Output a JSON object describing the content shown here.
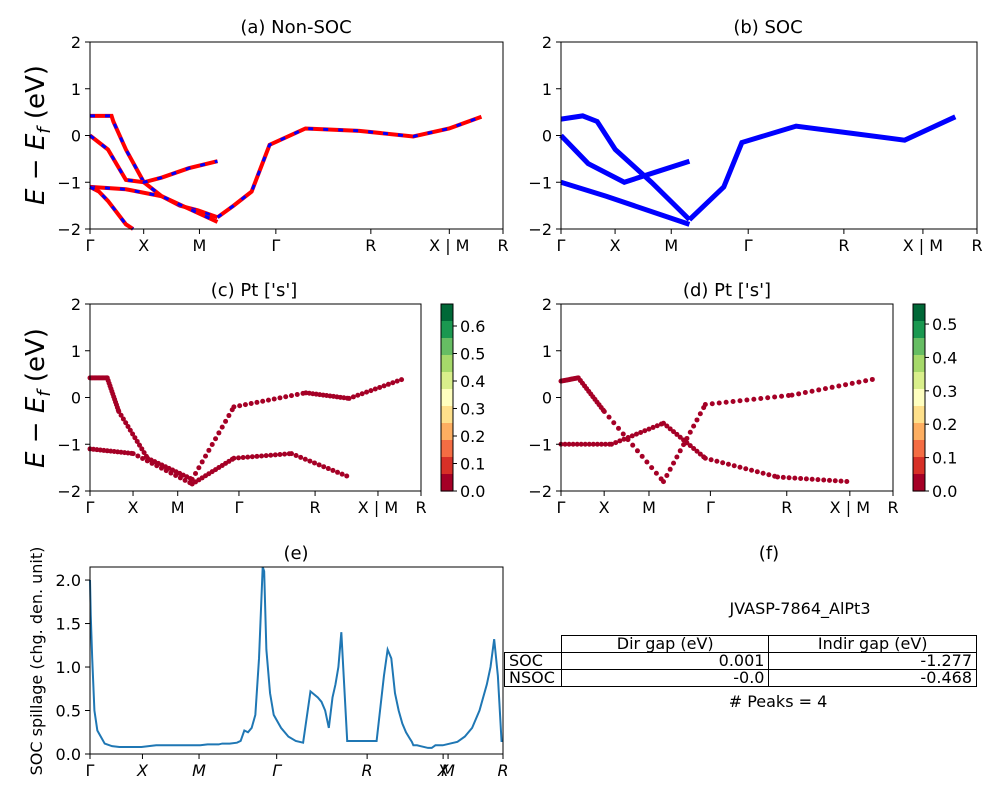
{
  "chart_data": [
    {
      "id": "a",
      "type": "line",
      "title": "(a) Non-SOC",
      "ylabel": "E − E_f (eV)",
      "ylim": [
        -2,
        2
      ],
      "yticks": [
        "2",
        "1",
        "0",
        "−1",
        "−2"
      ],
      "kticks": [
        "Γ",
        "X",
        "M",
        "Γ",
        "R",
        "X | M",
        "R"
      ],
      "colors": {
        "nsoc": "#ff0000",
        "soc": "#0000ff"
      },
      "style": "red line with blue dashes",
      "series": [
        {
          "values": [
            [
              0,
              0.42
            ],
            [
              0.12,
              0.42
            ],
            [
              0.13,
              0.3
            ],
            [
              0.2,
              -0.3
            ],
            [
              0.3,
              -1
            ],
            [
              0.4,
              -1.3
            ],
            [
              0.5,
              -1.5
            ],
            [
              0.6,
              -1.6
            ],
            [
              0.71,
              -1.75
            ]
          ]
        },
        {
          "values": [
            [
              0.71,
              -1.75
            ],
            [
              0.8,
              -1.5
            ],
            [
              0.9,
              -1.2
            ],
            [
              1,
              -0.2
            ],
            [
              1.2,
              0.15
            ],
            [
              1.5,
              0.1
            ],
            [
              1.8,
              -0.02
            ],
            [
              2,
              0.15
            ],
            [
              2.18,
              0.4
            ]
          ]
        },
        {
          "values": [
            [
              0,
              0
            ],
            [
              0.1,
              -0.3
            ],
            [
              0.2,
              -0.95
            ],
            [
              0.3,
              -1
            ],
            [
              0.4,
              -0.9
            ],
            [
              0.55,
              -0.7
            ],
            [
              0.71,
              -0.55
            ]
          ]
        },
        {
          "values": [
            [
              0,
              -1.1
            ],
            [
              0.2,
              -1.15
            ],
            [
              0.4,
              -1.3
            ],
            [
              0.71,
              -1.85
            ]
          ]
        },
        {
          "values": [
            [
              0,
              -1.1
            ],
            [
              0.05,
              -1.2
            ],
            [
              0.1,
              -1.4
            ],
            [
              0.2,
              -1.9
            ],
            [
              0.24,
              -2
            ]
          ]
        }
      ]
    },
    {
      "id": "b",
      "type": "line",
      "title": "(b) SOC",
      "ylim": [
        -2,
        2
      ],
      "yticks": [
        "2",
        "1",
        "0",
        "−1",
        "−2"
      ],
      "kticks": [
        "Γ",
        "X",
        "M",
        "Γ",
        "R",
        "X | M",
        "R"
      ],
      "colors": {
        "soc": "#0000ff"
      },
      "series": [
        {
          "values": [
            [
              0,
              0.35
            ],
            [
              0.12,
              0.42
            ],
            [
              0.2,
              0.3
            ],
            [
              0.3,
              -0.3
            ],
            [
              0.5,
              -1
            ],
            [
              0.71,
              -1.8
            ]
          ]
        },
        {
          "values": [
            [
              0.71,
              -1.8
            ],
            [
              0.9,
              -1.1
            ],
            [
              1,
              -0.15
            ],
            [
              1.3,
              0.2
            ],
            [
              1.6,
              0.05
            ],
            [
              1.9,
              -0.1
            ],
            [
              2.18,
              0.4
            ]
          ]
        },
        {
          "values": [
            [
              0,
              0
            ],
            [
              0.15,
              -0.6
            ],
            [
              0.35,
              -1
            ],
            [
              0.55,
              -0.75
            ],
            [
              0.71,
              -0.55
            ]
          ]
        },
        {
          "values": [
            [
              0,
              -1
            ],
            [
              0.25,
              -1.3
            ],
            [
              0.71,
              -1.9
            ]
          ]
        }
      ]
    },
    {
      "id": "c",
      "type": "scatter",
      "title": "(c)  Pt ['s']",
      "ylabel": "E − E_f (eV)",
      "ylim": [
        -2,
        2
      ],
      "yticks": [
        "2",
        "1",
        "0",
        "−1",
        "−2"
      ],
      "kticks": [
        "Γ",
        "X",
        "M",
        "Γ",
        "R",
        "X | M",
        "R"
      ],
      "colorbar": {
        "ticks": [
          "0.0",
          "0.1",
          "0.2",
          "0.3",
          "0.4",
          "0.5",
          "0.6"
        ],
        "max": 0.68
      },
      "series": [
        {
          "values": [
            [
              0,
              0.42
            ],
            [
              0.12,
              0.42
            ],
            [
              0.2,
              -0.3
            ],
            [
              0.4,
              -1.3
            ],
            [
              0.71,
              -1.75
            ],
            [
              1,
              -0.2
            ],
            [
              1.5,
              0.1
            ],
            [
              1.8,
              -0.02
            ],
            [
              2.18,
              0.4
            ]
          ]
        },
        {
          "values": [
            [
              0,
              -1.1
            ],
            [
              0.3,
              -1.2
            ],
            [
              0.71,
              -1.85
            ],
            [
              1,
              -1.3
            ],
            [
              1.4,
              -1.2
            ],
            [
              1.8,
              -1.7
            ]
          ]
        }
      ]
    },
    {
      "id": "d",
      "type": "scatter",
      "title": "(d) Pt ['s']",
      "ylim": [
        -2,
        2
      ],
      "yticks": [
        "2",
        "1",
        "0",
        "−1",
        "−2"
      ],
      "kticks": [
        "Γ",
        "X",
        "M",
        "Γ",
        "R",
        "X | M",
        "R"
      ],
      "colorbar": {
        "ticks": [
          "0.0",
          "0.1",
          "0.2",
          "0.3",
          "0.4",
          "0.5"
        ],
        "max": 0.56
      },
      "series": [
        {
          "values": [
            [
              0,
              0.35
            ],
            [
              0.12,
              0.42
            ],
            [
              0.3,
              -0.3
            ],
            [
              0.71,
              -1.8
            ],
            [
              1,
              -0.15
            ],
            [
              1.6,
              0.05
            ],
            [
              2.18,
              0.4
            ]
          ]
        },
        {
          "values": [
            [
              0,
              -1
            ],
            [
              0.35,
              -1
            ],
            [
              0.71,
              -0.55
            ],
            [
              1,
              -1.3
            ],
            [
              1.5,
              -1.7
            ],
            [
              2,
              -1.8
            ]
          ]
        }
      ]
    },
    {
      "id": "e",
      "type": "line",
      "title": "(e)",
      "ylabel": "SOC spillage (chg. den. unit)",
      "ylim": [
        0,
        2.15
      ],
      "yticks": [
        "2.0",
        "1.5",
        "1.0",
        "0.5",
        "0.0"
      ],
      "kticks": [
        "Γ",
        "X",
        "M",
        "Γ",
        "R",
        "X",
        "M",
        "R"
      ],
      "color": "#1f77b4",
      "x": [
        0,
        0.01,
        0.03,
        0.06,
        0.1,
        0.2,
        0.3,
        0.4,
        0.5,
        0.6,
        0.7,
        0.8,
        0.9,
        1,
        1.05,
        1.1,
        1.15,
        1.2,
        1.25,
        1.28,
        1.29,
        1.31,
        1.35,
        1.4,
        1.5,
        1.6,
        1.7,
        1.75,
        1.8,
        1.9,
        2,
        2.05,
        2.1,
        2.15,
        2.2,
        2.25,
        2.3,
        2.35,
        2.37,
        2.4,
        2.45,
        2.5,
        2.6,
        2.7,
        2.8,
        2.9,
        3,
        3.1,
        3.15,
        3.2,
        3.25,
        3.3,
        3.34,
        3.38,
        3.4,
        3.42,
        3.5,
        3.55,
        3.6,
        3.7,
        3.8,
        3.9,
        4,
        4.05,
        4.1,
        4.15,
        4.2,
        4.25,
        4.3,
        4.35,
        4.38,
        4.4,
        4.45,
        4.5,
        4.55,
        4.6,
        4.65,
        4.7,
        4.75,
        4.8,
        4.9,
        5,
        5.1,
        5.2,
        5.3,
        5.4,
        5.45,
        5.5,
        5.55,
        5.6,
        5.62
      ],
      "y": [
        2.0,
        1.6,
        1.1,
        0.5,
        0.27,
        0.12,
        0.09,
        0.08,
        0.08,
        0.08,
        0.08,
        0.09,
        0.1,
        0.1,
        0.1,
        0.1,
        0.1,
        0.1,
        0.1,
        0.1,
        0.1,
        0.1,
        0.1,
        0.1,
        0.1,
        0.11,
        0.11,
        0.11,
        0.12,
        0.12,
        0.13,
        0.15,
        0.27,
        0.25,
        0.3,
        0.45,
        1.1,
        2.15,
        2.1,
        1.2,
        0.7,
        0.45,
        0.3,
        0.2,
        0.15,
        0.13,
        0.72,
        0.65,
        0.6,
        0.5,
        0.3,
        0.65,
        0.8,
        1.0,
        1.2,
        1.4,
        0.15,
        0.15,
        0.15,
        0.15,
        0.15,
        0.15,
        0.9,
        1.2,
        1.1,
        0.7,
        0.5,
        0.35,
        0.25,
        0.18,
        0.14,
        0.1,
        0.1,
        0.09,
        0.08,
        0.07,
        0.07,
        0.1,
        0.1,
        0.1,
        0.12,
        0.14,
        0.2,
        0.3,
        0.5,
        0.8,
        1.0,
        1.32,
        0.9,
        0.15,
        0.15
      ]
    }
  ],
  "panel_f": {
    "title": "(f)",
    "caption": "JVASP-7864_AlPt3",
    "col_headers": [
      "Dir gap (eV)",
      "Indir gap (eV)"
    ],
    "rows": [
      {
        "label": "SOC",
        "dir": "0.001",
        "indir": "-1.277"
      },
      {
        "label": "NSOC",
        "dir": "-0.0",
        "indir": "-0.468"
      }
    ],
    "peaks": "# Peaks = 4"
  }
}
